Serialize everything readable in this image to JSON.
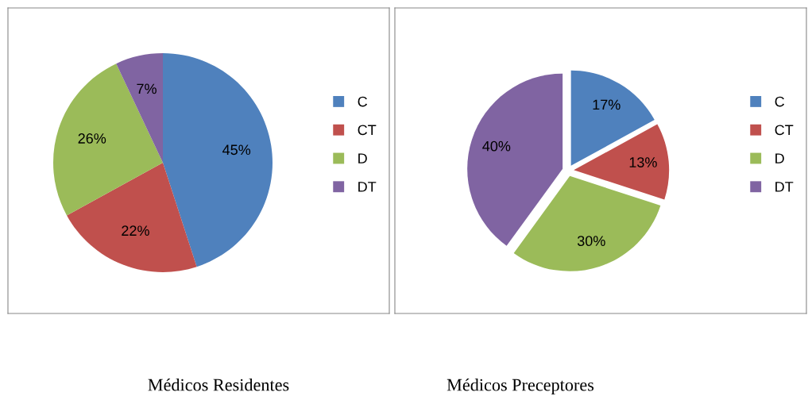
{
  "chart_data": [
    {
      "type": "pie",
      "title": "Médicos Residentes",
      "categories": [
        "C",
        "CT",
        "D",
        "DT"
      ],
      "values": [
        45,
        22,
        26,
        7
      ],
      "value_labels": [
        "45%",
        "22%",
        "26%",
        "7%"
      ],
      "colors": [
        "#4f81bd",
        "#c0504d",
        "#9bbb59",
        "#8064a2"
      ],
      "legend": "right"
    },
    {
      "type": "pie",
      "title": "Médicos Preceptores",
      "categories": [
        "C",
        "CT",
        "D",
        "DT"
      ],
      "values": [
        17,
        13,
        30,
        40
      ],
      "value_labels": [
        "17%",
        "13%",
        "30%",
        "40%"
      ],
      "colors": [
        "#4f81bd",
        "#c0504d",
        "#9bbb59",
        "#8064a2"
      ],
      "legend": "right"
    }
  ]
}
